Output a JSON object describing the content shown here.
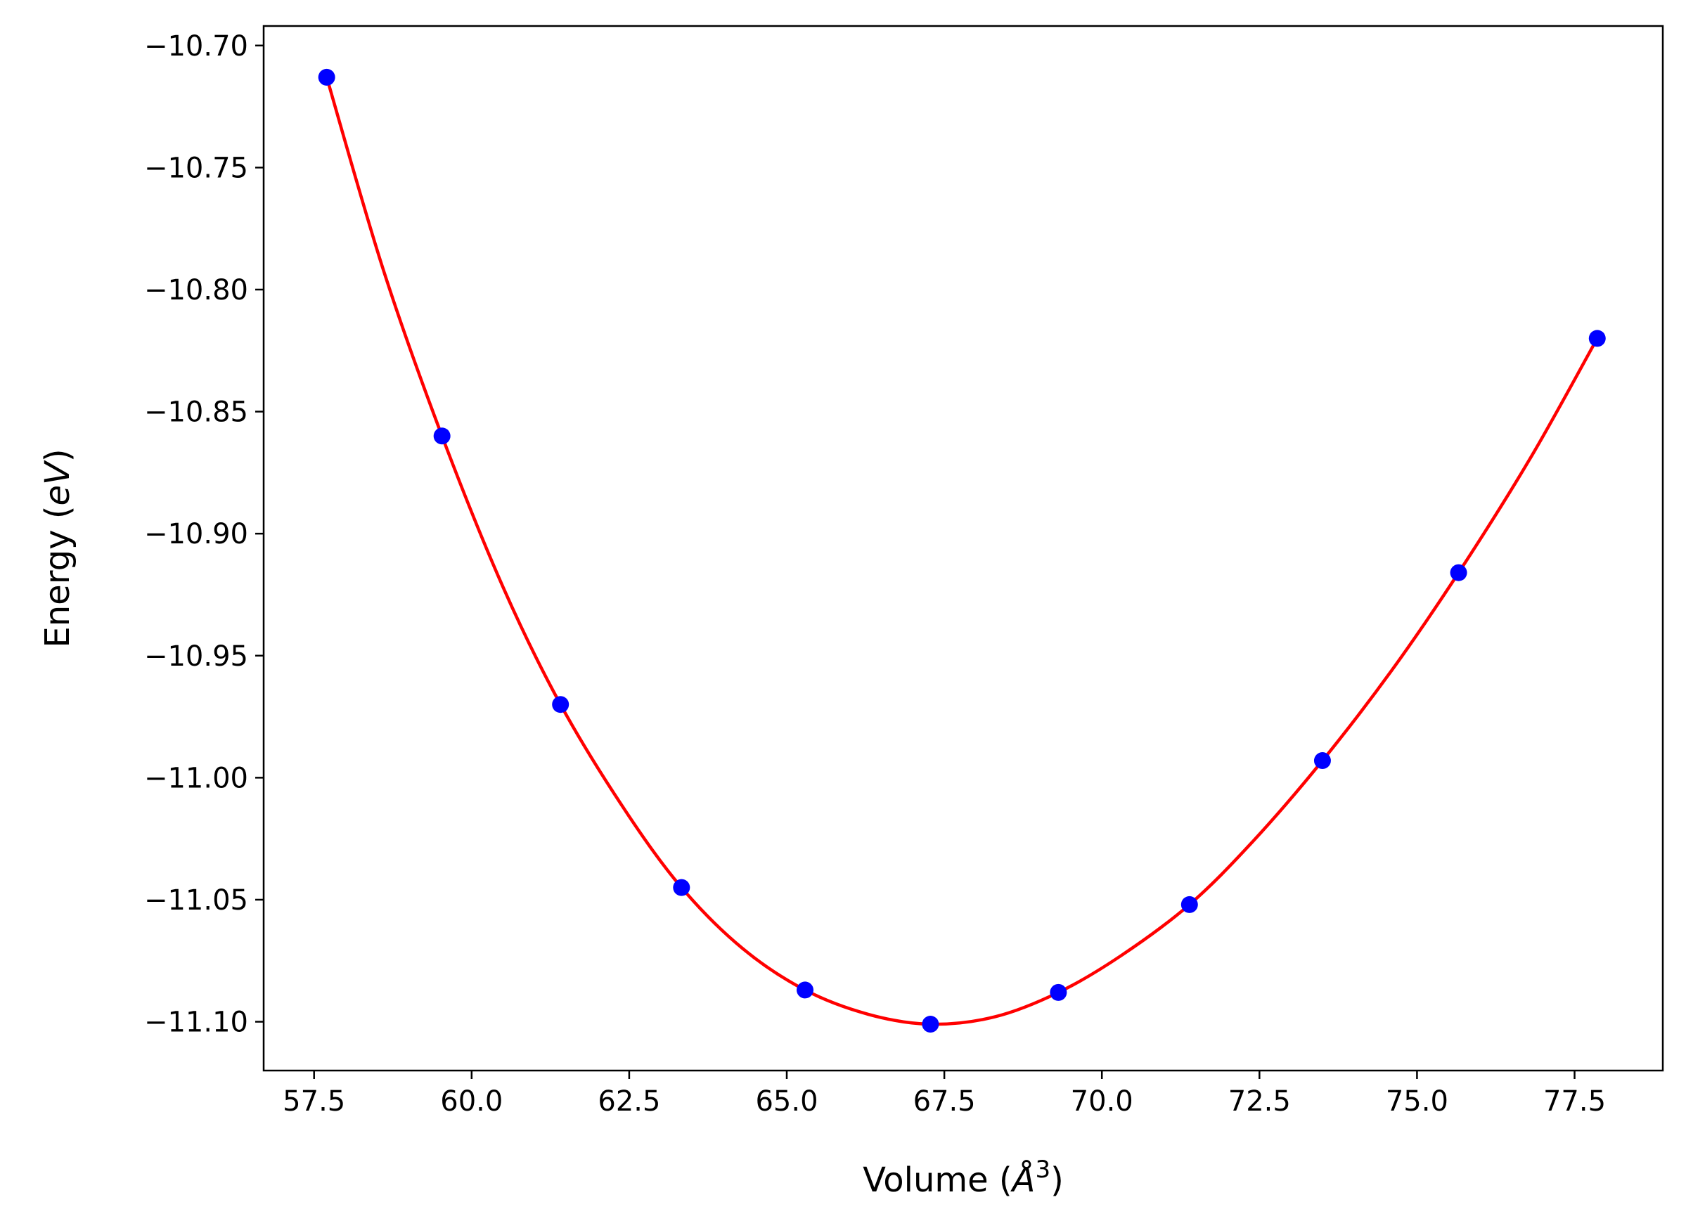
{
  "chart_data": {
    "type": "scatter",
    "title": "",
    "xlabel": "Volume (",
    "xlabel_unit": "Å",
    "xlabel_exp": "3",
    "xlabel_close": ")",
    "ylabel": "Energy (",
    "ylabel_unit": "eV",
    "ylabel_close": ")",
    "xlim": [
      56.7,
      78.9
    ],
    "ylim": [
      -11.12,
      -10.692
    ],
    "xticks": [
      57.5,
      60.0,
      62.5,
      65.0,
      67.5,
      70.0,
      72.5,
      75.0,
      77.5
    ],
    "xtick_labels": [
      "57.5",
      "60.0",
      "62.5",
      "65.0",
      "67.5",
      "70.0",
      "72.5",
      "75.0",
      "77.5"
    ],
    "yticks": [
      -10.7,
      -10.75,
      -10.8,
      -10.85,
      -10.9,
      -10.95,
      -11.0,
      -11.05,
      -11.1
    ],
    "ytick_labels": [
      "−10.70",
      "−10.75",
      "−10.80",
      "−10.85",
      "−10.90",
      "−10.95",
      "−11.00",
      "−11.05",
      "−11.10"
    ],
    "grid": false,
    "series": [
      {
        "kind": "points",
        "color": "#0000ff",
        "x": [
          57.7,
          59.53,
          61.41,
          63.33,
          65.29,
          67.28,
          69.31,
          71.39,
          73.5,
          75.66,
          77.86
        ],
        "y": [
          -10.713,
          -10.86,
          -10.97,
          -11.045,
          -11.087,
          -11.101,
          -11.088,
          -11.052,
          -10.993,
          -10.916,
          -10.82
        ]
      },
      {
        "kind": "fit-curve",
        "color": "#ff0000",
        "x": [
          57.7,
          58.6,
          59.53,
          60.5,
          61.41,
          62.4,
          63.33,
          64.3,
          65.29,
          66.3,
          67.28,
          68.3,
          69.31,
          70.3,
          71.39,
          72.4,
          73.5,
          74.6,
          75.66,
          76.8,
          77.86
        ],
        "y": [
          -10.713,
          -10.792,
          -10.86,
          -10.922,
          -10.97,
          -11.012,
          -11.045,
          -11.07,
          -11.087,
          -11.097,
          -11.101,
          -11.098,
          -11.088,
          -11.073,
          -11.052,
          -11.026,
          -10.993,
          -10.956,
          -10.916,
          -10.869,
          -10.82
        ]
      }
    ]
  }
}
